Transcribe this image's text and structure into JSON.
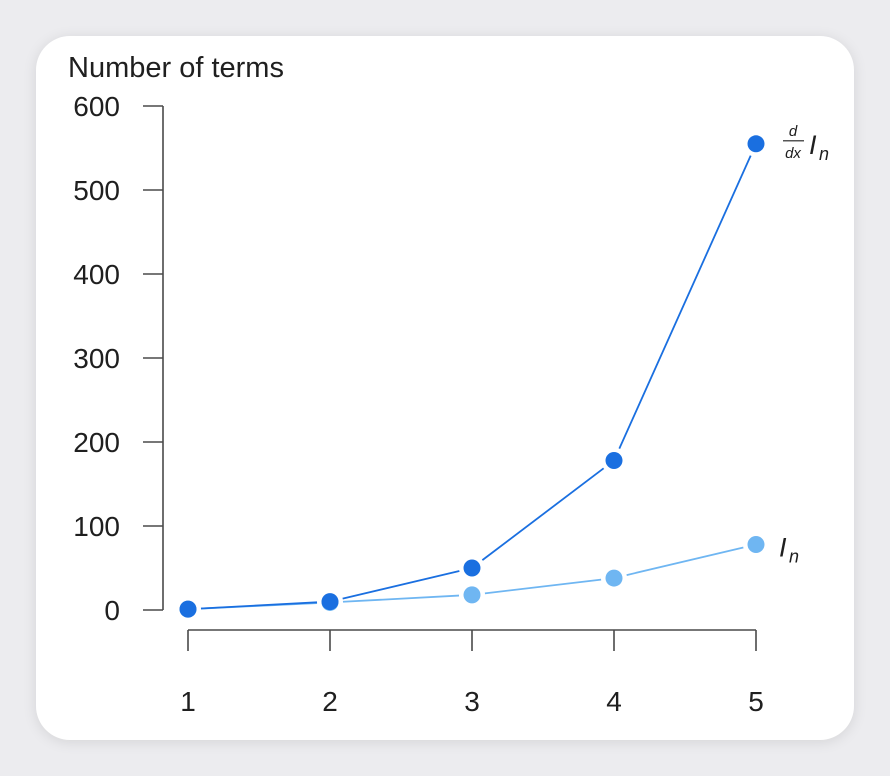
{
  "chart_data": {
    "type": "line",
    "title": "",
    "ylabel": "Number of terms",
    "xlabel": "",
    "x": [
      1,
      2,
      3,
      4,
      5
    ],
    "xticks": [
      "1",
      "2",
      "3",
      "4",
      "5"
    ],
    "ylim": [
      0,
      600
    ],
    "yticks": [
      "0",
      "100",
      "200",
      "300",
      "400",
      "500",
      "600"
    ],
    "grid": false,
    "series": [
      {
        "name": "d/dx I_n",
        "label_numerator": "d",
        "label_denominator": "dx",
        "label_base": "I",
        "label_sub": "n",
        "color": "#1a6fe0",
        "values": [
          1,
          10,
          50,
          178,
          555
        ]
      },
      {
        "name": "I_n",
        "label_base": "I",
        "label_sub": "n",
        "color": "#6fb6f2",
        "values": [
          1,
          9,
          18,
          38,
          78
        ]
      }
    ]
  }
}
